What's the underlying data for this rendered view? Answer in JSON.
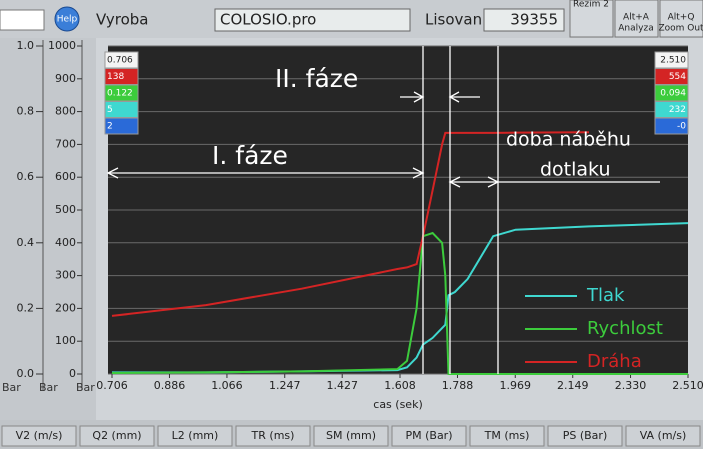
{
  "toolbar": {
    "help": "Help",
    "mode": "Vyroba",
    "file": "COLOSIO.pro",
    "counter_label": "Lisovani",
    "counter": "39355",
    "buttons": [
      [
        "Rezim 2"
      ],
      [
        "Alt+A",
        "Analyza"
      ],
      [
        "Alt+Q",
        "Zoom Out"
      ]
    ]
  },
  "chart_data": {
    "type": "line",
    "xlabel": "cas (sek)",
    "xlim": [
      0.706,
      2.51
    ],
    "xticks": [
      0.706,
      0.886,
      1.066,
      1.247,
      1.427,
      1.608,
      1.788,
      1.969,
      2.149,
      {
        "value": 2.33,
        "label": "2.330"
      },
      {
        "value": 2.51,
        "label": "2.510"
      }
    ],
    "ylim": [
      0,
      1000
    ],
    "yticks": [
      0,
      100,
      200,
      300,
      400,
      500,
      600,
      700,
      800,
      900,
      1000
    ],
    "aux_ylim": [
      0,
      1
    ],
    "aux_yticks": [
      {
        "value": 0,
        "label": "0.0"
      },
      0.2,
      0.4,
      0.6,
      0.8,
      {
        "value": 1,
        "label": "1.0"
      }
    ],
    "grid": true,
    "x": [
      0.706,
      1.0,
      1.3,
      1.6,
      1.63,
      1.66,
      1.68,
      1.71,
      1.74,
      1.75,
      1.76,
      1.78,
      1.82,
      1.9,
      1.97,
      2.2,
      2.51
    ],
    "series": [
      {
        "name": "Tlak",
        "color": "#3fd8d0",
        "values": [
          5,
          5,
          8,
          12,
          20,
          50,
          90,
          110,
          140,
          150,
          240,
          250,
          290,
          420,
          440,
          450,
          460
        ]
      },
      {
        "name": "Rychlost",
        "color": "#3ccc3c",
        "values": [
          3,
          5,
          8,
          15,
          40,
          200,
          420,
          430,
          400,
          300,
          0,
          0,
          0,
          0,
          0,
          0,
          0
        ]
      },
      {
        "name": "Dráha",
        "color": "#d42424",
        "values": [
          177,
          210,
          260,
          320,
          325,
          335,
          420,
          560,
          700,
          735,
          735,
          735,
          735,
          735,
          736,
          737,
          null
        ]
      }
    ],
    "annotations": [
      "II. fáze",
      "I. fáze",
      "doba náběhu",
      "dotlaku"
    ],
    "cursor_left": [
      "0.706",
      "138",
      "0.122",
      "5",
      "2"
    ],
    "cursor_right": [
      "2.510",
      "554",
      "0.094",
      "232",
      "-0"
    ]
  },
  "units": [
    "Bar",
    "Bar",
    "Bar"
  ],
  "bottom": [
    "V2 (m/s)",
    "Q2 (mm)",
    "L2 (mm)",
    "TR (ms)",
    "SM (mm)",
    "PM (Bar)",
    "TM (ms)",
    "PS (Bar)",
    "VA (m/s)"
  ]
}
